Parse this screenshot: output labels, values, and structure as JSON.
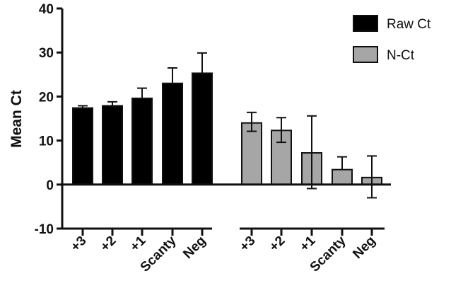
{
  "chart_data": {
    "type": "bar",
    "title": "",
    "xlabel": "",
    "ylabel": "Mean Ct",
    "ylim": [
      -10,
      40
    ],
    "yticks": [
      -10,
      0,
      10,
      20,
      30,
      40
    ],
    "grid": false,
    "legend_position": "top-right",
    "colors": {
      "raw": "#000000",
      "norm": "#a6a6a6"
    },
    "groups": [
      {
        "series_name": "Raw Ct",
        "categories": [
          "+3",
          "+2",
          "+1",
          "Scanty",
          "Neg"
        ],
        "values": [
          17.4,
          17.9,
          19.6,
          23.0,
          25.3
        ],
        "error_upper": [
          0.5,
          0.9,
          2.3,
          3.5,
          4.6
        ]
      },
      {
        "series_name": "N-Ct",
        "categories": [
          "+3",
          "+2",
          "+1",
          "Scanty",
          "Neg"
        ],
        "values": [
          14.0,
          12.3,
          7.2,
          3.4,
          1.6
        ],
        "error_upper": [
          2.4,
          2.9,
          8.4,
          2.9,
          4.9
        ],
        "error_lower": [
          1.9,
          2.7,
          8.1,
          0,
          4.6
        ]
      }
    ],
    "legend": [
      {
        "label": "Raw Ct",
        "color": "#000000"
      },
      {
        "label": " N-Ct",
        "color": "#a6a6a6"
      }
    ]
  }
}
